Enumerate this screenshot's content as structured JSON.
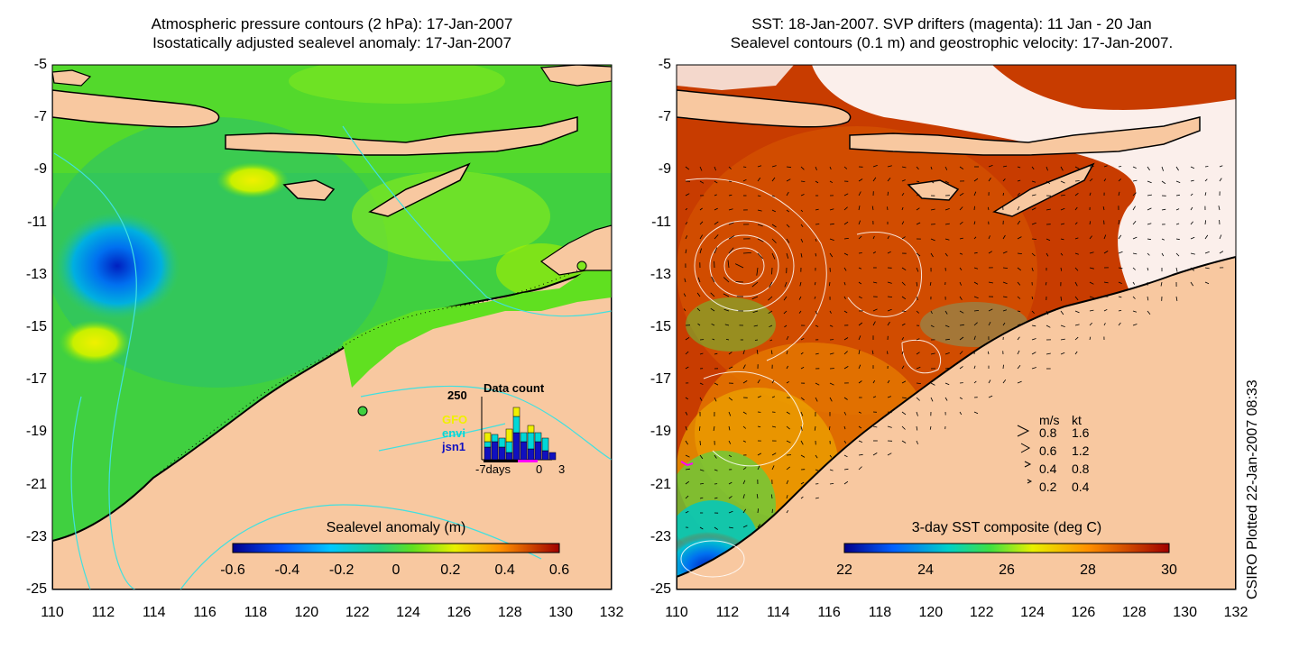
{
  "left_panel": {
    "title_line1": "Atmospheric pressure contours (2 hPa): 17-Jan-2007",
    "title_line2": "Isostatically adjusted sealevel anomaly: 17-Jan-2007",
    "colorbar_label": "Sealevel anomaly (m)",
    "colorbar_ticks": [
      "-0.6",
      "-0.4",
      "-0.2",
      "0",
      "0.2",
      "0.4",
      "0.6"
    ],
    "inset": {
      "title": "Data count",
      "y_max_label": "250",
      "satellites": [
        {
          "name": "GFO",
          "color": "#f0f000"
        },
        {
          "name": "envi",
          "color": "#00d8d8"
        },
        {
          "name": "jsn1",
          "color": "#1010c0"
        }
      ],
      "x_labels": [
        "-7days",
        "0",
        "3"
      ]
    }
  },
  "right_panel": {
    "title_line1": "SST: 18-Jan-2007. SVP drifters (magenta): 11 Jan - 20 Jan",
    "title_line2": "Sealevel contours (0.1 m) and geostrophic velocity: 17-Jan-2007.",
    "colorbar_label": "3-day SST composite (deg C)",
    "colorbar_ticks": [
      "22",
      "24",
      "26",
      "28",
      "30"
    ],
    "velocity_legend": {
      "header_ms": "m/s",
      "header_kt": "kt",
      "rows": [
        {
          "ms": "0.8",
          "kt": "1.6"
        },
        {
          "ms": "0.6",
          "kt": "1.2"
        },
        {
          "ms": "0.4",
          "kt": "0.8"
        },
        {
          "ms": "0.2",
          "kt": "0.4"
        }
      ]
    }
  },
  "axes": {
    "y_ticks": [
      "-5",
      "-7",
      "-9",
      "-11",
      "-13",
      "-15",
      "-17",
      "-19",
      "-21",
      "-23",
      "-25"
    ],
    "x_ticks": [
      "110",
      "112",
      "114",
      "116",
      "118",
      "120",
      "122",
      "124",
      "126",
      "128",
      "130",
      "132"
    ]
  },
  "credit": "CSIRO Plotted 22-Jan-2007 08:33",
  "colors": {
    "land": "#f8c8a0",
    "sla_mean": "#40d840",
    "sst_warm": "#c83c00"
  }
}
